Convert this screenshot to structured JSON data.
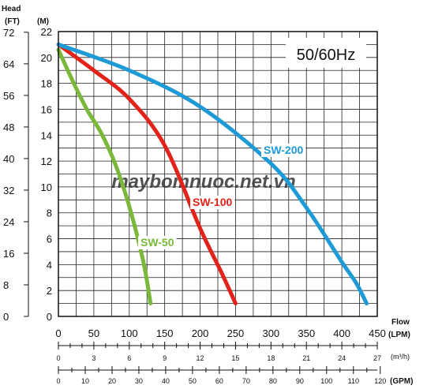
{
  "chart_data": {
    "type": "line",
    "annotation": "50/60Hz",
    "watermark": "maybomnuoc.net.vn",
    "y_axis": {
      "title": "Head",
      "unit_ft": "(FT)",
      "unit_m": "(M)",
      "m_ticks": [
        0,
        2,
        4,
        6,
        8,
        10,
        12,
        14,
        16,
        18,
        20,
        22
      ],
      "ft_ticks": [
        0,
        8,
        16,
        24,
        32,
        40,
        48,
        56,
        64,
        72
      ],
      "ylim": [
        0,
        22
      ]
    },
    "x_axis": {
      "title": "Flow",
      "unit_lpm": "(LPM)",
      "unit_m3h": "(m³/h)",
      "unit_gpm": "(GPM)",
      "lpm_ticks": [
        0,
        50,
        100,
        150,
        200,
        250,
        300,
        350,
        400,
        450
      ],
      "m3h_ticks": [
        0,
        3,
        6,
        9,
        12,
        15,
        18,
        21,
        24,
        27
      ],
      "gpm_ticks": [
        0,
        10,
        20,
        30,
        40,
        50,
        60,
        70,
        80,
        90,
        100,
        110,
        120
      ],
      "xlim": [
        0,
        450
      ]
    },
    "grid": true,
    "series": [
      {
        "name": "SW-50",
        "color": "#7ab83a",
        "x": [
          0,
          20,
          40,
          60,
          80,
          100,
          120,
          130
        ],
        "y": [
          20.6,
          18.2,
          16.0,
          14.2,
          11.8,
          8.5,
          4.2,
          1.0
        ]
      },
      {
        "name": "SW-100",
        "color": "#e2231a",
        "x": [
          0,
          50,
          100,
          150,
          200,
          230,
          250
        ],
        "y": [
          21.0,
          19.0,
          16.8,
          13.2,
          6.8,
          3.4,
          1.0
        ]
      },
      {
        "name": "SW-200",
        "color": "#1e9ad6",
        "x": [
          0,
          100,
          200,
          300,
          350,
          400,
          420,
          435
        ],
        "y": [
          21.0,
          19.0,
          16.2,
          11.8,
          8.4,
          4.2,
          2.6,
          1.0
        ]
      }
    ]
  }
}
